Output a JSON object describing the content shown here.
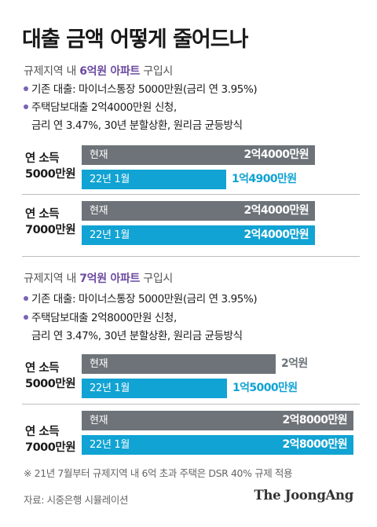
{
  "title": "대출 금액 어떻게 줄어드나",
  "sections": [
    {
      "head_prefix": "규제지역 내 ",
      "head_highlight": "6억원 아파트",
      "head_suffix": " 구입시",
      "bullet1": "기존 대출: 마이너스통장 5000만원(금리 연 3.95%)",
      "bullet2_line1": "주택담보대출 2억4000만원 신청,",
      "bullet2_line2": "금리 연 3.47%, 30년 분할상환, 원리금 균등방식"
    },
    {
      "head_prefix": "규제지역 내 ",
      "head_highlight": "7억원 아파트",
      "head_suffix": " 구입시",
      "bullet1": "기존 대출: 마이너스통장 5000만원(금리 연 3.95%)",
      "bullet2_line1": "주택담보대출 2억8000만원 신청,",
      "bullet2_line2": "금리 연 3.47%, 30년 분할상환, 원리금 균등방식"
    }
  ],
  "chart_data": {
    "type": "bar",
    "unit": "만원",
    "series_labels": [
      "현재",
      "22년 1월"
    ],
    "colors": {
      "현재": "#6d7378",
      "22년 1월": "#11a3d3",
      "highlight": "#6b4aa0"
    },
    "groups": [
      {
        "section": "6억원 아파트",
        "income_line1": "연 소득",
        "income_line2": "5000만원",
        "values": [
          24000,
          14900
        ],
        "labels": [
          "2억4000만원",
          "1억4900만원"
        ]
      },
      {
        "section": "6억원 아파트",
        "income_line1": "연 소득",
        "income_line2": "7000만원",
        "values": [
          24000,
          24000
        ],
        "labels": [
          "2억4000만원",
          "2억4000만원"
        ]
      },
      {
        "section": "7억원 아파트",
        "income_line1": "연 소득",
        "income_line2": "5000만원",
        "values": [
          20000,
          15000
        ],
        "labels": [
          "2억원",
          "1억5000만원"
        ]
      },
      {
        "section": "7억원 아파트",
        "income_line1": "연 소득",
        "income_line2": "7000만원",
        "values": [
          28000,
          28000
        ],
        "labels": [
          "2억8000만원",
          "2억8000만원"
        ]
      }
    ]
  },
  "footnote": "※ 21년 7월부터 규제지역 내 6억 초과 주택은 DSR 40% 규제 적용",
  "source": "자료: 시중은행 시뮬레이션",
  "brand": "The JoongAng"
}
